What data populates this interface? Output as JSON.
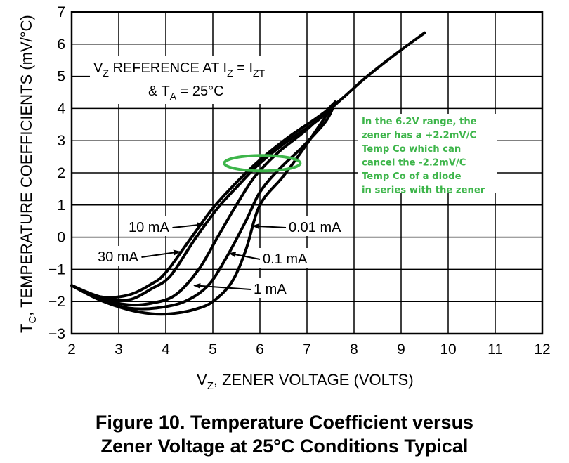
{
  "chart_data": {
    "type": "line",
    "title": "",
    "xlabel_main": "V",
    "xlabel_sub": "Z",
    "xlabel_rest": ", ZENER VOLTAGE (VOLTS)",
    "ylabel_main": "T",
    "ylabel_sub": "C",
    "ylabel_rest": ", TEMPERATURE COEFFICIENTS (mV/°C)",
    "xlim": [
      2,
      12
    ],
    "ylim": [
      -3,
      7
    ],
    "xticks": [
      "2",
      "3",
      "4",
      "5",
      "6",
      "7",
      "8",
      "9",
      "10",
      "11",
      "12"
    ],
    "yticks": [
      "7",
      "6",
      "5",
      "4",
      "3",
      "2",
      "1",
      "0",
      "-1",
      "-2",
      "-3"
    ],
    "grid": true,
    "series": [
      {
        "name": "30 mA",
        "x": [
          2.0,
          2.6,
          3.2,
          3.7,
          4.0,
          4.5,
          5.0,
          5.5,
          6.0,
          6.6,
          7.2,
          7.7,
          8.2,
          8.8,
          9.5
        ],
        "y": [
          -1.5,
          -1.85,
          -1.8,
          -1.45,
          -1.1,
          -0.1,
          0.9,
          1.7,
          2.4,
          3.1,
          3.7,
          4.25,
          4.9,
          5.6,
          6.35
        ]
      },
      {
        "name": "10 mA",
        "x": [
          2.0,
          2.6,
          3.2,
          3.7,
          4.1,
          4.6,
          5.1,
          5.6,
          6.0,
          6.6,
          7.2,
          7.7
        ],
        "y": [
          -1.5,
          -1.85,
          -1.95,
          -1.6,
          -1.2,
          -0.1,
          0.9,
          1.7,
          2.3,
          3.0,
          3.6,
          4.25
        ]
      },
      {
        "name": "0.1 mA",
        "x": [
          2.0,
          2.6,
          3.2,
          3.7,
          4.2,
          4.7,
          5.1,
          5.5,
          5.9,
          6.4,
          7.0,
          7.6
        ],
        "y": [
          -1.5,
          -1.9,
          -2.1,
          -2.05,
          -1.8,
          -1.0,
          0.0,
          1.0,
          1.9,
          2.65,
          3.35,
          4.2
        ]
      },
      {
        "name": "0.01 mA",
        "x": [
          2.0,
          2.6,
          3.2,
          3.8,
          4.4,
          4.9,
          5.3,
          5.7,
          6.0,
          6.4,
          6.9,
          7.4,
          7.6
        ],
        "y": [
          -1.5,
          -1.95,
          -2.2,
          -2.2,
          -2.0,
          -1.5,
          -0.6,
          0.5,
          1.4,
          2.1,
          2.8,
          3.6,
          4.2
        ]
      },
      {
        "name": "1 mA",
        "x": [
          2.0,
          2.6,
          3.2,
          3.7,
          4.1,
          4.6,
          5.0,
          5.4,
          5.7,
          6.0,
          6.5,
          7.0,
          7.6
        ],
        "y": [
          -1.5,
          -1.95,
          -2.25,
          -2.38,
          -2.38,
          -2.25,
          -2.0,
          -1.4,
          -0.4,
          1.0,
          1.9,
          2.9,
          4.2
        ]
      }
    ],
    "label_points": {
      "10 mA": {
        "tip": [
          4.8,
          0.4
        ]
      },
      "30 mA": {
        "tip": [
          4.3,
          -0.45
        ]
      },
      "0.01 mA": {
        "tip": [
          5.85,
          0.35
        ]
      },
      "0.1 mA": {
        "tip": [
          5.35,
          -0.5
        ]
      },
      "1 mA": {
        "tip": [
          4.6,
          -1.5
        ]
      }
    },
    "annotation_box": {
      "line1_pre": "V",
      "line1_sub1": "Z",
      "line1_mid": " REFERENCE AT I",
      "line1_sub2": "Z",
      "line1_eq": " = I",
      "line1_sub3": "ZT",
      "line2_pre": "& T",
      "line2_sub": "A",
      "line2_rest": " = 25°C"
    },
    "highlight": {
      "ellipse_center": [
        6.05,
        2.3
      ],
      "color": "#3db54a",
      "note_lines": [
        "In the 6.2V range, the",
        "zener has a +2.2mV/C",
        "Temp Co which can",
        "cancel the -2.2mV/C",
        "Temp Co of a diode",
        "in series with the zener"
      ]
    }
  },
  "caption": {
    "line1": "Figure 10. Temperature Coefficient versus",
    "line2": "Zener Voltage at 25°C Conditions Typical"
  }
}
